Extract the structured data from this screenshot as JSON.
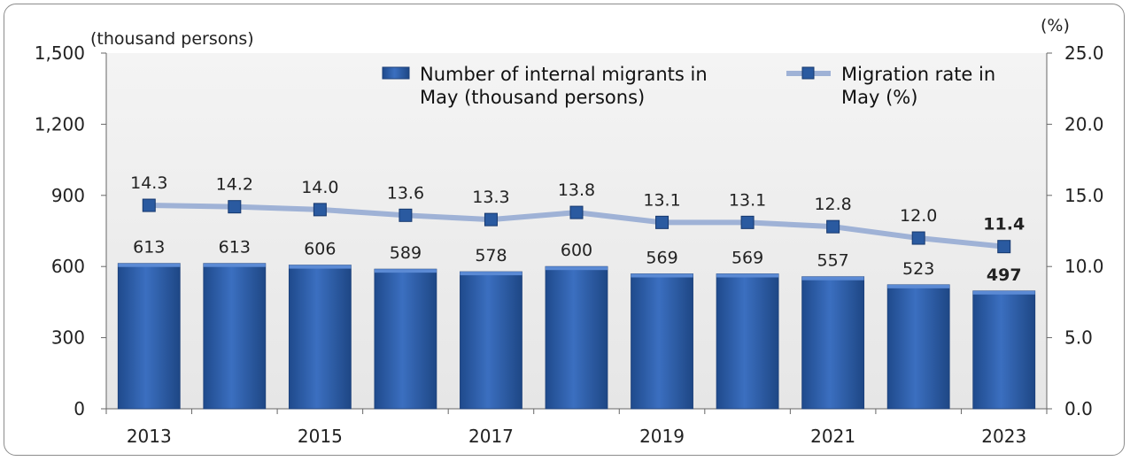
{
  "chart_data": {
    "type": "bar",
    "categories": [
      "2013",
      "2014",
      "2015",
      "2016",
      "2017",
      "2018",
      "2019",
      "2020",
      "2021",
      "2022",
      "2023"
    ],
    "x_tick_labels": [
      "2013",
      "",
      "2015",
      "",
      "2017",
      "",
      "2019",
      "",
      "2021",
      "",
      "2023"
    ],
    "series": [
      {
        "name": "Number of internal migrants in May (thousand persons)",
        "legend_lines": [
          "Number of internal migrants in",
          "May (thousand persons)"
        ],
        "type": "bar",
        "axis": "left",
        "color": "#2f5fa8",
        "values": [
          613,
          613,
          606,
          589,
          578,
          600,
          569,
          569,
          557,
          523,
          497
        ],
        "labels": [
          "613",
          "613",
          "606",
          "589",
          "578",
          "600",
          "569",
          "569",
          "557",
          "523",
          "497"
        ]
      },
      {
        "name": "Migration rate in May (%)",
        "legend_lines": [
          "Migration rate in",
          "May (%)"
        ],
        "type": "line",
        "axis": "right",
        "color": "#9fb2d6",
        "marker_color": "#2a5aa0",
        "values": [
          14.3,
          14.2,
          14.0,
          13.6,
          13.3,
          13.8,
          13.1,
          13.1,
          12.8,
          12.0,
          11.4
        ],
        "labels": [
          "14.3",
          "14.2",
          "14.0",
          "13.6",
          "13.3",
          "13.8",
          "13.1",
          "13.1",
          "12.8",
          "12.0",
          "11.4"
        ]
      }
    ],
    "highlight_last": true,
    "y_left": {
      "unit": "(thousand persons)",
      "ylim": [
        0,
        1500
      ],
      "ticks": [
        "0",
        "300",
        "600",
        "900",
        "1,200",
        "1,500"
      ],
      "tick_values": [
        0,
        300,
        600,
        900,
        1200,
        1500
      ]
    },
    "y_right": {
      "unit": "(%)",
      "ylim": [
        0,
        25
      ],
      "ticks": [
        "0.0",
        "5.0",
        "10.0",
        "15.0",
        "20.0",
        "25.0"
      ],
      "tick_values": [
        0,
        5,
        10,
        15,
        20,
        25
      ]
    },
    "legend_position": "top-right",
    "plot_background": "#ebebeb"
  }
}
